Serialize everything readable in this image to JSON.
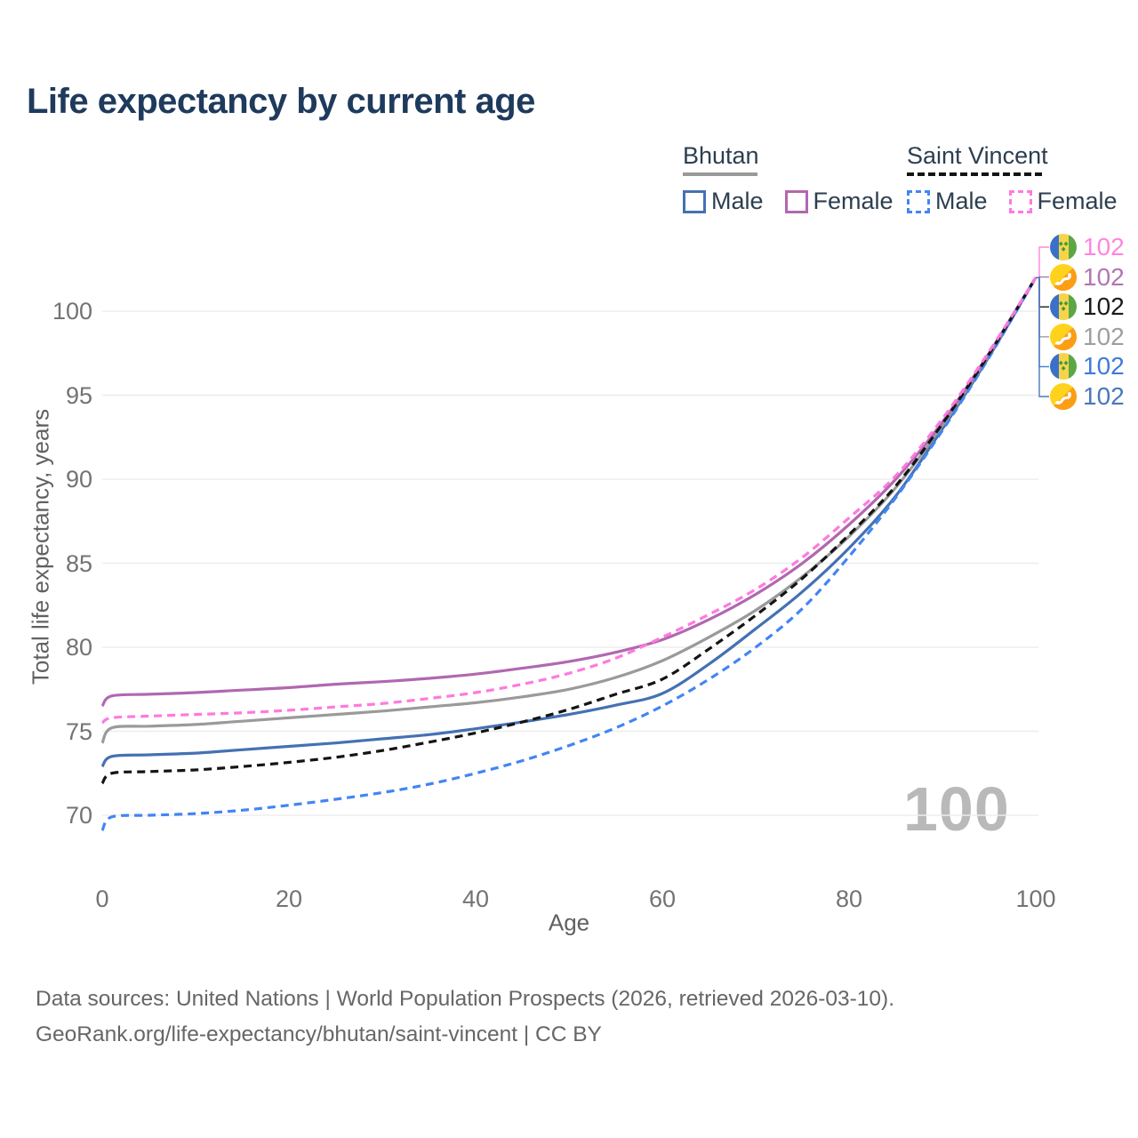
{
  "title": "Life expectancy by current age",
  "watermark_age": "100",
  "legend": {
    "groups": [
      {
        "label": "Bhutan",
        "line_style": "solid",
        "line_color": "#9a9a9a",
        "items": [
          {
            "label": "Male",
            "color": "#4471b3",
            "dashed": false
          },
          {
            "label": "Female",
            "color": "#b168b0",
            "dashed": false
          }
        ]
      },
      {
        "label": "Saint Vincent",
        "line_style": "dashed",
        "line_color": "#141414",
        "items": [
          {
            "label": "Male",
            "color": "#4285f4",
            "dashed": true
          },
          {
            "label": "Female",
            "color": "#ff79de",
            "dashed": true
          }
        ]
      }
    ]
  },
  "axes": {
    "x": {
      "title": "Age",
      "ticks": [
        "0",
        "20",
        "40",
        "60",
        "80",
        "100"
      ]
    },
    "y": {
      "title": "Total life expectancy, years",
      "ticks": [
        "70",
        "75",
        "80",
        "85",
        "90",
        "95",
        "100"
      ]
    }
  },
  "chart_data": {
    "type": "line",
    "title": "Life expectancy by current age",
    "xlabel": "Age",
    "ylabel": "Total life expectancy, years",
    "xlim": [
      0,
      100
    ],
    "ylim": [
      68.5,
      103
    ],
    "grid": "horizontal",
    "x": [
      0,
      1,
      5,
      10,
      15,
      20,
      25,
      30,
      35,
      40,
      45,
      50,
      55,
      60,
      65,
      70,
      75,
      80,
      85,
      90,
      95,
      100
    ],
    "series": [
      {
        "name": "Bhutan Male",
        "country": "Bhutan",
        "sex": "male",
        "style": "solid",
        "color": "#4471b3",
        "values": [
          72.9,
          73.5,
          73.6,
          73.7,
          73.9,
          74.1,
          74.3,
          74.55,
          74.8,
          75.15,
          75.55,
          76.0,
          76.55,
          77.25,
          79.0,
          81.1,
          83.3,
          85.9,
          89.0,
          93.0,
          97.3,
          102
        ]
      },
      {
        "name": "Bhutan",
        "country": "Bhutan",
        "sex": "both",
        "style": "solid",
        "color": "#9a9a9a",
        "values": [
          74.3,
          75.2,
          75.3,
          75.4,
          75.6,
          75.8,
          76.0,
          76.2,
          76.45,
          76.7,
          77.05,
          77.5,
          78.2,
          79.2,
          80.6,
          82.2,
          84.2,
          86.6,
          89.5,
          93.2,
          97.4,
          102
        ]
      },
      {
        "name": "Bhutan Female",
        "country": "Bhutan",
        "sex": "female",
        "style": "solid",
        "color": "#b168b0",
        "values": [
          76.5,
          77.1,
          77.2,
          77.3,
          77.45,
          77.6,
          77.8,
          77.95,
          78.15,
          78.4,
          78.75,
          79.15,
          79.7,
          80.45,
          81.65,
          83.15,
          85.0,
          87.3,
          90.0,
          93.4,
          97.5,
          102
        ]
      },
      {
        "name": "Saint Vincent Male",
        "country": "Saint Vincent",
        "sex": "male",
        "style": "dashed",
        "color": "#4285f4",
        "values": [
          69.1,
          69.9,
          70.0,
          70.1,
          70.3,
          70.6,
          70.95,
          71.35,
          71.85,
          72.5,
          73.25,
          74.15,
          75.2,
          76.5,
          78.1,
          80.0,
          82.3,
          85.4,
          88.9,
          92.9,
          97.25,
          102
        ]
      },
      {
        "name": "Saint Vincent",
        "country": "Saint Vincent",
        "sex": "both",
        "style": "dashed",
        "color": "#141414",
        "values": [
          71.9,
          72.5,
          72.6,
          72.7,
          72.9,
          73.15,
          73.45,
          73.85,
          74.35,
          74.9,
          75.55,
          76.3,
          77.2,
          78.1,
          79.9,
          81.9,
          84.1,
          86.7,
          89.6,
          93.3,
          97.45,
          102
        ]
      },
      {
        "name": "Saint Vincent Female",
        "country": "Saint Vincent",
        "sex": "female",
        "style": "dashed",
        "color": "#ff79de",
        "values": [
          75.5,
          75.8,
          75.9,
          76.0,
          76.1,
          76.25,
          76.45,
          76.65,
          76.95,
          77.3,
          77.8,
          78.45,
          79.35,
          80.6,
          81.95,
          83.45,
          85.35,
          87.7,
          90.2,
          93.6,
          97.6,
          102
        ]
      }
    ]
  },
  "endpoints": [
    {
      "flag": "saint-vincent",
      "value": "102",
      "color": "#ff85dd"
    },
    {
      "flag": "bhutan",
      "value": "102",
      "color": "#b176b1"
    },
    {
      "flag": "saint-vincent",
      "value": "102",
      "color": "#1a1a1a"
    },
    {
      "flag": "bhutan",
      "value": "102",
      "color": "#9e9e9e"
    },
    {
      "flag": "saint-vincent",
      "value": "102",
      "color": "#3d7ad9"
    },
    {
      "flag": "bhutan",
      "value": "102",
      "color": "#4a77bb"
    }
  ],
  "footer": {
    "line1": "Data sources: United Nations | World Population Prospects (2026, retrieved 2026-03-10).",
    "line2": "GeoRank.org/life-expectancy/bhutan/saint-vincent | CC BY"
  }
}
